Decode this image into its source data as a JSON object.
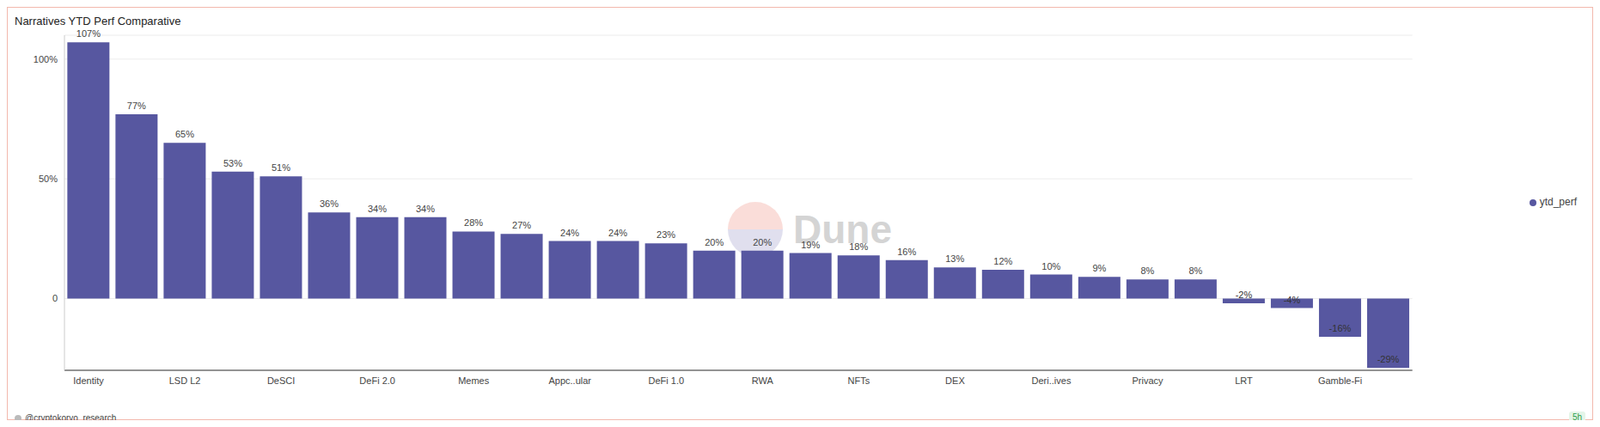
{
  "chart_data": {
    "type": "bar",
    "title": "Narratives YTD Perf Comparative",
    "categories": [
      "Identity",
      null,
      "LSD L2",
      null,
      "DeSCI",
      null,
      "DeFi 2.0",
      null,
      "Memes",
      null,
      "Appc..ular",
      null,
      "DeFi 1.0",
      null,
      "RWA",
      null,
      "NFTs",
      null,
      "DEX",
      null,
      "Deri..ives",
      null,
      "Privacy",
      null,
      "LRT",
      null,
      "Gamble-Fi",
      null
    ],
    "series": [
      {
        "name": "ytd_perf",
        "color": "#5757a0",
        "values": [
          107,
          77,
          65,
          53,
          51,
          36,
          34,
          34,
          28,
          27,
          24,
          24,
          23,
          20,
          20,
          19,
          18,
          16,
          13,
          12,
          10,
          9,
          8,
          8,
          -2,
          -4,
          -16,
          -29
        ],
        "value_labels": [
          "107%",
          "77%",
          "65%",
          "53%",
          "51%",
          "36%",
          "34%",
          "34%",
          "28%",
          "27%",
          "24%",
          "24%",
          "23%",
          "20%",
          "20%",
          "19%",
          "18%",
          "16%",
          "13%",
          "12%",
          "10%",
          "9%",
          "8%",
          "8%",
          "-2%",
          "-4%",
          "-16%",
          "-29%"
        ]
      }
    ],
    "ylim": [
      -30,
      110
    ],
    "yticks": [
      0,
      {
        "value": 50,
        "label": "50%"
      },
      {
        "value": 100,
        "label": "100%"
      }
    ],
    "grid": true,
    "legend": "right",
    "data_labels": true,
    "annotations": [
      "Dune",
      "@cryptokoryo_research",
      "5h"
    ]
  }
}
